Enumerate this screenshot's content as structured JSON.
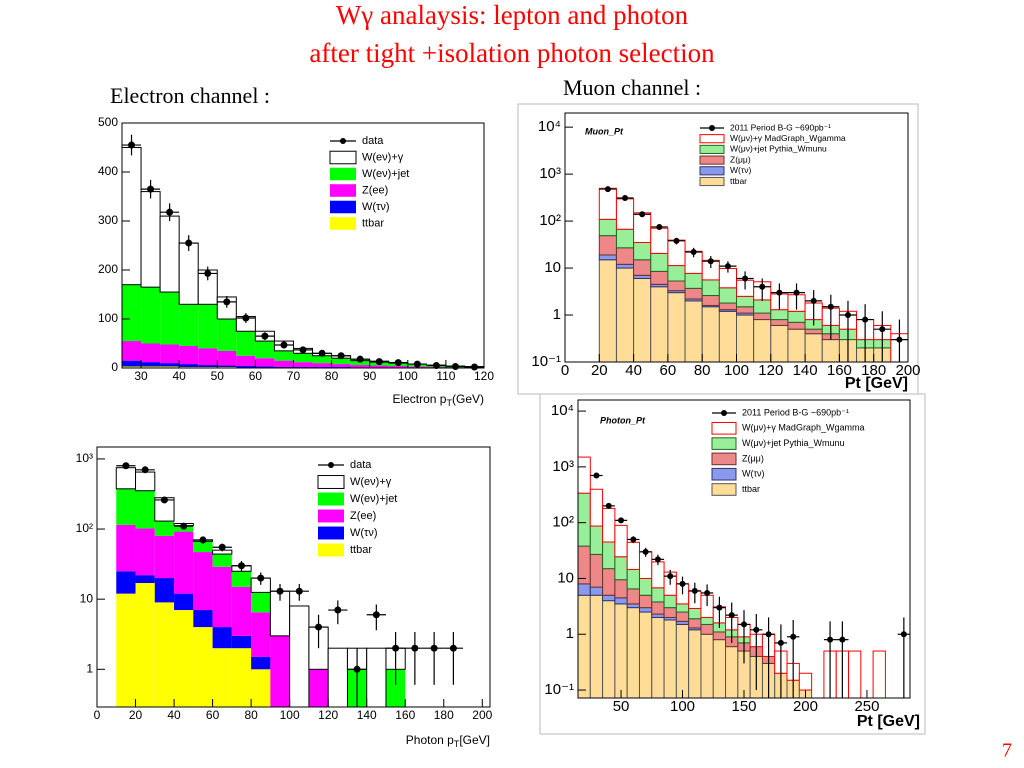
{
  "title": [
    "Wγ analaysis: lepton and photon",
    "after tight +isolation photon selection"
  ],
  "page_number": "7",
  "chart_data": [
    {
      "type": "histogram",
      "subtitle": "Electron channel :",
      "log": false,
      "bins": [
        25,
        30,
        35,
        40,
        45,
        50,
        55,
        60,
        65,
        70,
        75,
        80,
        85,
        90,
        95,
        100,
        105,
        110,
        115,
        120
      ],
      "xlim": [
        25,
        120
      ],
      "xticks": [
        30,
        40,
        50,
        60,
        70,
        80,
        90,
        100,
        110,
        120
      ],
      "ylim": [
        0,
        500
      ],
      "yticks": [
        0,
        100,
        200,
        300,
        400,
        500
      ],
      "xlabel": {
        "text": "Electron p",
        "sub": "T",
        "unit": "(GeV)"
      },
      "data": {
        "name": "data",
        "color": "#000000",
        "values": [
          455,
          365,
          318,
          255,
          193,
          135,
          102,
          65,
          47,
          37,
          30,
          25,
          18,
          13,
          11,
          8,
          5,
          3,
          2
        ],
        "errors": [
          21,
          19,
          18,
          16,
          14,
          12,
          10,
          8,
          7,
          6,
          5,
          5,
          4,
          4,
          3,
          3,
          2,
          2,
          1
        ]
      },
      "series": [
        {
          "name": "W(eν)+γ",
          "color": "#ffffff",
          "line": "#000000",
          "values": [
            280,
            195,
            155,
            125,
            70,
            45,
            30,
            20,
            20,
            10,
            5,
            5,
            3,
            2,
            1,
            0,
            1,
            1,
            1
          ]
        },
        {
          "name": "W(eν)+jet",
          "color": "#00ff00",
          "values": [
            115,
            115,
            107,
            85,
            90,
            65,
            50,
            35,
            20,
            18,
            15,
            12,
            9,
            7,
            6,
            5,
            3,
            2,
            1
          ]
        },
        {
          "name": "Z(ee)",
          "color": "#ff00ff",
          "values": [
            40,
            38,
            38,
            37,
            34,
            30,
            21,
            17,
            13,
            10,
            8,
            6,
            5,
            4,
            4,
            3,
            2,
            1,
            1
          ]
        },
        {
          "name": "W(τν)",
          "color": "#0000ff",
          "values": [
            12,
            9,
            7,
            6,
            4,
            3,
            3,
            2,
            1,
            1,
            1,
            1,
            1,
            1,
            0,
            0,
            0,
            0,
            0
          ]
        },
        {
          "name": "ttbar",
          "color": "#ffff00",
          "values": [
            3,
            3,
            3,
            2,
            2,
            2,
            1,
            1,
            1,
            1,
            1,
            1,
            0,
            0,
            0,
            0,
            0,
            0,
            0
          ]
        }
      ]
    },
    {
      "type": "histogram",
      "subtitle": "Muon channel :",
      "title": "Muon_Pt",
      "log": true,
      "bins": [
        20,
        30,
        40,
        50,
        60,
        70,
        80,
        90,
        100,
        110,
        120,
        130,
        140,
        150,
        160,
        170,
        180,
        190,
        200
      ],
      "xlim": [
        0,
        200
      ],
      "xticks": [
        0,
        20,
        40,
        60,
        80,
        100,
        120,
        140,
        160,
        180,
        200
      ],
      "ylim": [
        0.1,
        20000
      ],
      "yticks": [
        {
          "value": 0.1,
          "label": "10⁻¹"
        },
        1,
        10,
        {
          "value": 100,
          "label": "10²"
        },
        {
          "value": 1000,
          "label": "10³"
        },
        {
          "value": 10000,
          "label": "10⁴"
        }
      ],
      "xlabel": "Pt [GeV]",
      "data": {
        "name": "2011 Period B-G ~690pb⁻¹",
        "color": "#000000",
        "values": [
          480,
          310,
          140,
          75,
          38,
          22,
          14,
          11,
          6,
          4,
          3,
          3,
          2,
          1.5,
          1,
          0.8,
          0.5,
          0.3
        ],
        "errors": [
          22,
          18,
          12,
          9,
          6,
          5,
          4,
          3,
          2.5,
          2,
          1.7,
          1.7,
          1.4,
          1.2,
          1,
          0.9,
          0.7,
          0.5
        ]
      },
      "series": [
        {
          "name": "W(μν)+γ MadGraph_Wgamma",
          "color": "#ffffff",
          "line": "#ff0000",
          "values": [
            390,
            230,
            115,
            50,
            28,
            15,
            9,
            6,
            3,
            3,
            1.5,
            1.5,
            1,
            0.8,
            0.7,
            0.5,
            0.3,
            0.3
          ]
        },
        {
          "name": "W(μν)+jet Pythia_Wmunu",
          "color": "#99ee99",
          "line": "#226622",
          "values": [
            60,
            40,
            20,
            12,
            6,
            4,
            3,
            2,
            1,
            1,
            0.5,
            0.5,
            0.3,
            0.2,
            0.2,
            0.1,
            0.1,
            0
          ]
        },
        {
          "name": "Z(μμ)",
          "color": "#ee8888",
          "line": "#663333",
          "values": [
            30,
            15,
            8,
            4,
            2,
            1.5,
            1,
            0.5,
            0.4,
            0.3,
            0.2,
            0.2,
            0.1,
            0.1,
            0,
            0,
            0,
            0
          ]
        },
        {
          "name": "W(τν)",
          "color": "#8899ee",
          "line": "#333366",
          "values": [
            4,
            2,
            1,
            0.5,
            0.3,
            0.2,
            0.1,
            0.1,
            0.1,
            0,
            0,
            0,
            0,
            0,
            0,
            0,
            0,
            0
          ]
        },
        {
          "name": "ttbar",
          "color": "#ffdd99",
          "line": "#555555",
          "values": [
            15,
            10,
            6,
            4,
            3,
            2,
            1.5,
            1.2,
            1,
            0.8,
            0.6,
            0.5,
            0.4,
            0.3,
            0.3,
            0.2,
            0.2,
            0.1
          ]
        }
      ]
    },
    {
      "type": "histogram",
      "log": true,
      "bins": [
        10,
        20,
        30,
        40,
        50,
        60,
        70,
        80,
        90,
        100,
        110,
        120,
        130,
        140,
        150,
        160,
        170,
        180,
        190
      ],
      "xlim": [
        0,
        204
      ],
      "xticks": [
        0,
        20,
        40,
        60,
        80,
        100,
        120,
        140,
        160,
        180,
        200
      ],
      "ylim": [
        0.29,
        1480
      ],
      "yticks": [
        1,
        10,
        {
          "value": 100,
          "label": "10²"
        },
        {
          "value": 1000,
          "label": "10³"
        }
      ],
      "xlabel": {
        "text": "Photon p",
        "sub": "T",
        "unit": "[GeV]"
      },
      "data": {
        "name": "data",
        "color": "#000000",
        "values": [
          800,
          700,
          260,
          110,
          70,
          55,
          30,
          20,
          13,
          13,
          4,
          7,
          1,
          6,
          2,
          2,
          2,
          2
        ],
        "errors": [
          28,
          26,
          16,
          10,
          8,
          7,
          5,
          4,
          3.5,
          3.5,
          2,
          2.6,
          1,
          2.4,
          1.4,
          1.4,
          1.4,
          1.4
        ]
      },
      "series": [
        {
          "name": "W(eν)+γ",
          "color": "#ffffff",
          "line": "#000000",
          "values": [
            375,
            298,
            150,
            8,
            3,
            6,
            5,
            7.5,
            10,
            8,
            3,
            2,
            1,
            2,
            1,
            0,
            0,
            0
          ]
        },
        {
          "name": "W(eν)+jet",
          "color": "#00ff00",
          "values": [
            260,
            250,
            50,
            20,
            20,
            15,
            10,
            6,
            0,
            0,
            0,
            0,
            1,
            0,
            1,
            0,
            0,
            0
          ]
        },
        {
          "name": "Z(ee)",
          "color": "#ff00ff",
          "values": [
            90,
            80,
            60,
            80,
            40,
            25,
            12,
            5,
            3,
            0,
            1,
            0,
            0,
            0,
            0,
            0,
            0,
            0
          ]
        },
        {
          "name": "W(τν)",
          "color": "#0000ff",
          "values": [
            13,
            5,
            11,
            5,
            3,
            2,
            1,
            0.5,
            0,
            0,
            0,
            0,
            0,
            0,
            0,
            0,
            0,
            0
          ]
        },
        {
          "name": "ttbar",
          "color": "#ffff00",
          "values": [
            12,
            17,
            9,
            7,
            4,
            2,
            2,
            1,
            0,
            0,
            0,
            0,
            0,
            0,
            0,
            0,
            0,
            0
          ]
        }
      ]
    },
    {
      "type": "histogram",
      "title": "Photon_Pt",
      "log": true,
      "bins": [
        15,
        25,
        35,
        45,
        55,
        65,
        75,
        85,
        95,
        105,
        115,
        125,
        135,
        145,
        155,
        165,
        175,
        185,
        195,
        205,
        215,
        225,
        235,
        245,
        255,
        265,
        275,
        285
      ],
      "xlim": [
        15,
        285
      ],
      "xticks": [
        50,
        100,
        150,
        200,
        250
      ],
      "ylim": [
        0.072,
        15800
      ],
      "yticks": [
        {
          "value": 0.1,
          "label": "10⁻¹"
        },
        1,
        10,
        {
          "value": 100,
          "label": "10²"
        },
        {
          "value": 1000,
          "label": "10³"
        },
        {
          "value": 10000,
          "label": "10⁴"
        }
      ],
      "xlabel": "Pt [GeV]",
      "data": {
        "name": "2011 Period B-G ~690pb⁻¹",
        "color": "#000000",
        "values": [
          null,
          700,
          200,
          110,
          50,
          30,
          22,
          11,
          8,
          6,
          5.5,
          3,
          2.2,
          1.5,
          1.2,
          1,
          0.7,
          0.9,
          null,
          null,
          0.8,
          0.8,
          null,
          null,
          null,
          null,
          1
        ],
        "errors": [
          null,
          26,
          14,
          10,
          7,
          5.5,
          4.7,
          3.3,
          2.8,
          2.4,
          2.3,
          1.7,
          1.5,
          1.2,
          1.1,
          1,
          0.8,
          0.9,
          null,
          null,
          0.9,
          0.9,
          null,
          null,
          null,
          null,
          1
        ]
      },
      "series": [
        {
          "name": "W(μν)+γ MadGraph_Wgamma",
          "color": "#ffffff",
          "line": "#ff0000",
          "values": [
            1160,
            310,
            135,
            65,
            30,
            20,
            13,
            8,
            4.5,
            3,
            3,
            1.5,
            0.8,
            0.6,
            0.4,
            0.6,
            0.3,
            0.15,
            0.1,
            0,
            0.5,
            0.5,
            0.5,
            0,
            0.5,
            0,
            0
          ]
        },
        {
          "name": "W(μν)+jet Pythia_Wmunu",
          "color": "#99ee99",
          "line": "#226622",
          "values": [
            300,
            60,
            30,
            15,
            8,
            5,
            3,
            2,
            1,
            1,
            0.5,
            0.5,
            0.3,
            0.2,
            0,
            0,
            0,
            0,
            0,
            0,
            0,
            0,
            0,
            0,
            0,
            0,
            0
          ]
        },
        {
          "name": "Z(μμ)",
          "color": "#ee8888",
          "line": "#663333",
          "values": [
            30,
            20,
            10,
            5,
            3,
            2,
            1.5,
            1,
            0.8,
            0.6,
            0.5,
            0.3,
            0.3,
            0.2,
            0.2,
            0.1,
            0,
            0,
            0,
            0,
            0,
            0,
            0,
            0,
            0,
            0,
            0
          ]
        },
        {
          "name": "W(τν)",
          "color": "#8899ee",
          "line": "#333366",
          "values": [
            3,
            2,
            1,
            1,
            0.5,
            0.5,
            0.3,
            0.2,
            0.2,
            0.1,
            0,
            0,
            0,
            0,
            0,
            0,
            0,
            0,
            0,
            0,
            0,
            0,
            0,
            0,
            0,
            0,
            0
          ]
        },
        {
          "name": "ttbar",
          "color": "#ffdd99",
          "line": "#555555",
          "values": [
            5,
            5,
            4,
            3.5,
            3,
            2.5,
            2,
            1.8,
            1.5,
            1.2,
            1,
            0.8,
            0.6,
            0.5,
            0.4,
            0.3,
            0.2,
            0.15,
            0.1,
            0,
            0,
            0,
            0,
            0,
            0,
            0,
            0
          ]
        }
      ]
    }
  ]
}
